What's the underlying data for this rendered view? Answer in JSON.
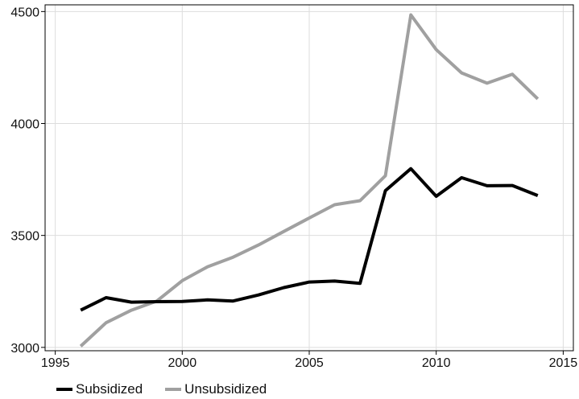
{
  "chart_data": {
    "type": "line",
    "title": "",
    "xlabel": "",
    "ylabel": "",
    "xlim": [
      1994.6,
      2015.4
    ],
    "ylim": [
      2985,
      4530
    ],
    "xticks": [
      1995,
      2000,
      2005,
      2010,
      2015
    ],
    "yticks": [
      3000,
      3500,
      4000,
      4500
    ],
    "grid": true,
    "legend_position": "bottom-left",
    "series": [
      {
        "name": "Subsidized",
        "color": "#000000",
        "x": [
          1996,
          1997,
          1998,
          1999,
          2000,
          2001,
          2002,
          2003,
          2004,
          2005,
          2006,
          2007,
          2008,
          2009,
          2010,
          2011,
          2012,
          2013,
          2014
        ],
        "y": [
          3166,
          3222,
          3202,
          3204,
          3205,
          3212,
          3207,
          3234,
          3267,
          3292,
          3296,
          3286,
          3700,
          3798,
          3675,
          3758,
          3722,
          3723,
          3678
        ]
      },
      {
        "name": "Unsubsidized",
        "color": "#a0a0a0",
        "x": [
          1996,
          1997,
          1998,
          1999,
          2000,
          2001,
          2002,
          2003,
          2004,
          2005,
          2006,
          2007,
          2008,
          2009,
          2010,
          2011,
          2012,
          2013,
          2014
        ],
        "y": [
          3005,
          3110,
          3166,
          3207,
          3298,
          3360,
          3403,
          3457,
          3518,
          3578,
          3637,
          3655,
          3767,
          4485,
          4330,
          4226,
          4180,
          4220,
          4110
        ]
      }
    ]
  }
}
